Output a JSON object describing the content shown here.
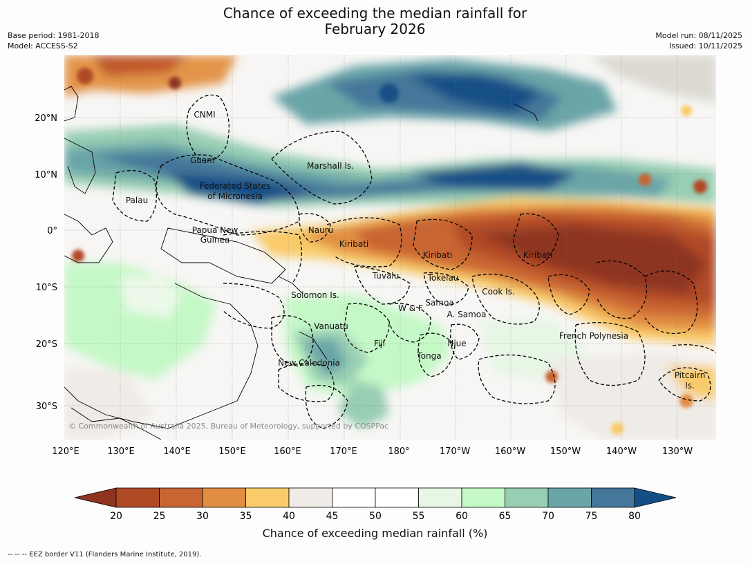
{
  "title_line1": "Chance of exceeding the median rainfall for",
  "title_line2": "February 2026",
  "meta": {
    "base_period": "Base period: 1981-2018",
    "model": "Model: ACCESS-S2",
    "model_run": "Model run: 08/11/2025",
    "issued": "Issued: 10/11/2025"
  },
  "map": {
    "lat_labels": [
      "20°N",
      "10°N",
      "0°",
      "10°S",
      "20°S",
      "30°S"
    ],
    "lon_labels": [
      "120°E",
      "130°E",
      "140°E",
      "150°E",
      "160°E",
      "170°E",
      "180°",
      "170°W",
      "160°W",
      "150°W",
      "140°W",
      "130°W"
    ],
    "regions": [
      {
        "name": "CNMI"
      },
      {
        "name": "Guam"
      },
      {
        "name": "Marshall Is."
      },
      {
        "name": "Federated States",
        "name2": "of Micronesia"
      },
      {
        "name": "Palau"
      },
      {
        "name": "Papua New",
        "name2": "Guinea"
      },
      {
        "name": "Nauru"
      },
      {
        "name": "Kiribati"
      },
      {
        "name": "Kiribati"
      },
      {
        "name": "Kiribati"
      },
      {
        "name": "Tuvalu"
      },
      {
        "name": "Tokelau"
      },
      {
        "name": "Cook Is."
      },
      {
        "name": "Solomon Is."
      },
      {
        "name": "Samoa"
      },
      {
        "name": "W & F"
      },
      {
        "name": "A. Samoa"
      },
      {
        "name": "Vanuatu"
      },
      {
        "name": "Fiji"
      },
      {
        "name": "Niue"
      },
      {
        "name": "Tonga"
      },
      {
        "name": "French Polynesia"
      },
      {
        "name": "New Caledonia"
      },
      {
        "name": "Pitcairn",
        "name2": "Is."
      }
    ],
    "copyright": "© Commonwealth of Australia 2025, Bureau of Meteorology, supported by COSPPac"
  },
  "colorbar": {
    "title": "Chance of exceeding median rainfall (%)",
    "ticks": [
      "20",
      "25",
      "30",
      "35",
      "40",
      "45",
      "50",
      "55",
      "60",
      "65",
      "70",
      "75",
      "80"
    ],
    "colors": [
      "#8e3420",
      "#b04a25",
      "#c96532",
      "#e18e42",
      "#f9cb6b",
      "#efebe6",
      "#ffffff",
      "#ffffff",
      "#e7f6e5",
      "#c5f8c7",
      "#98ceb3",
      "#6aa5a8",
      "#44779a",
      "#134f86"
    ]
  },
  "eez_note": "-- -- -- EEZ border V11 (Flanders Marine Institute, 2019)."
}
